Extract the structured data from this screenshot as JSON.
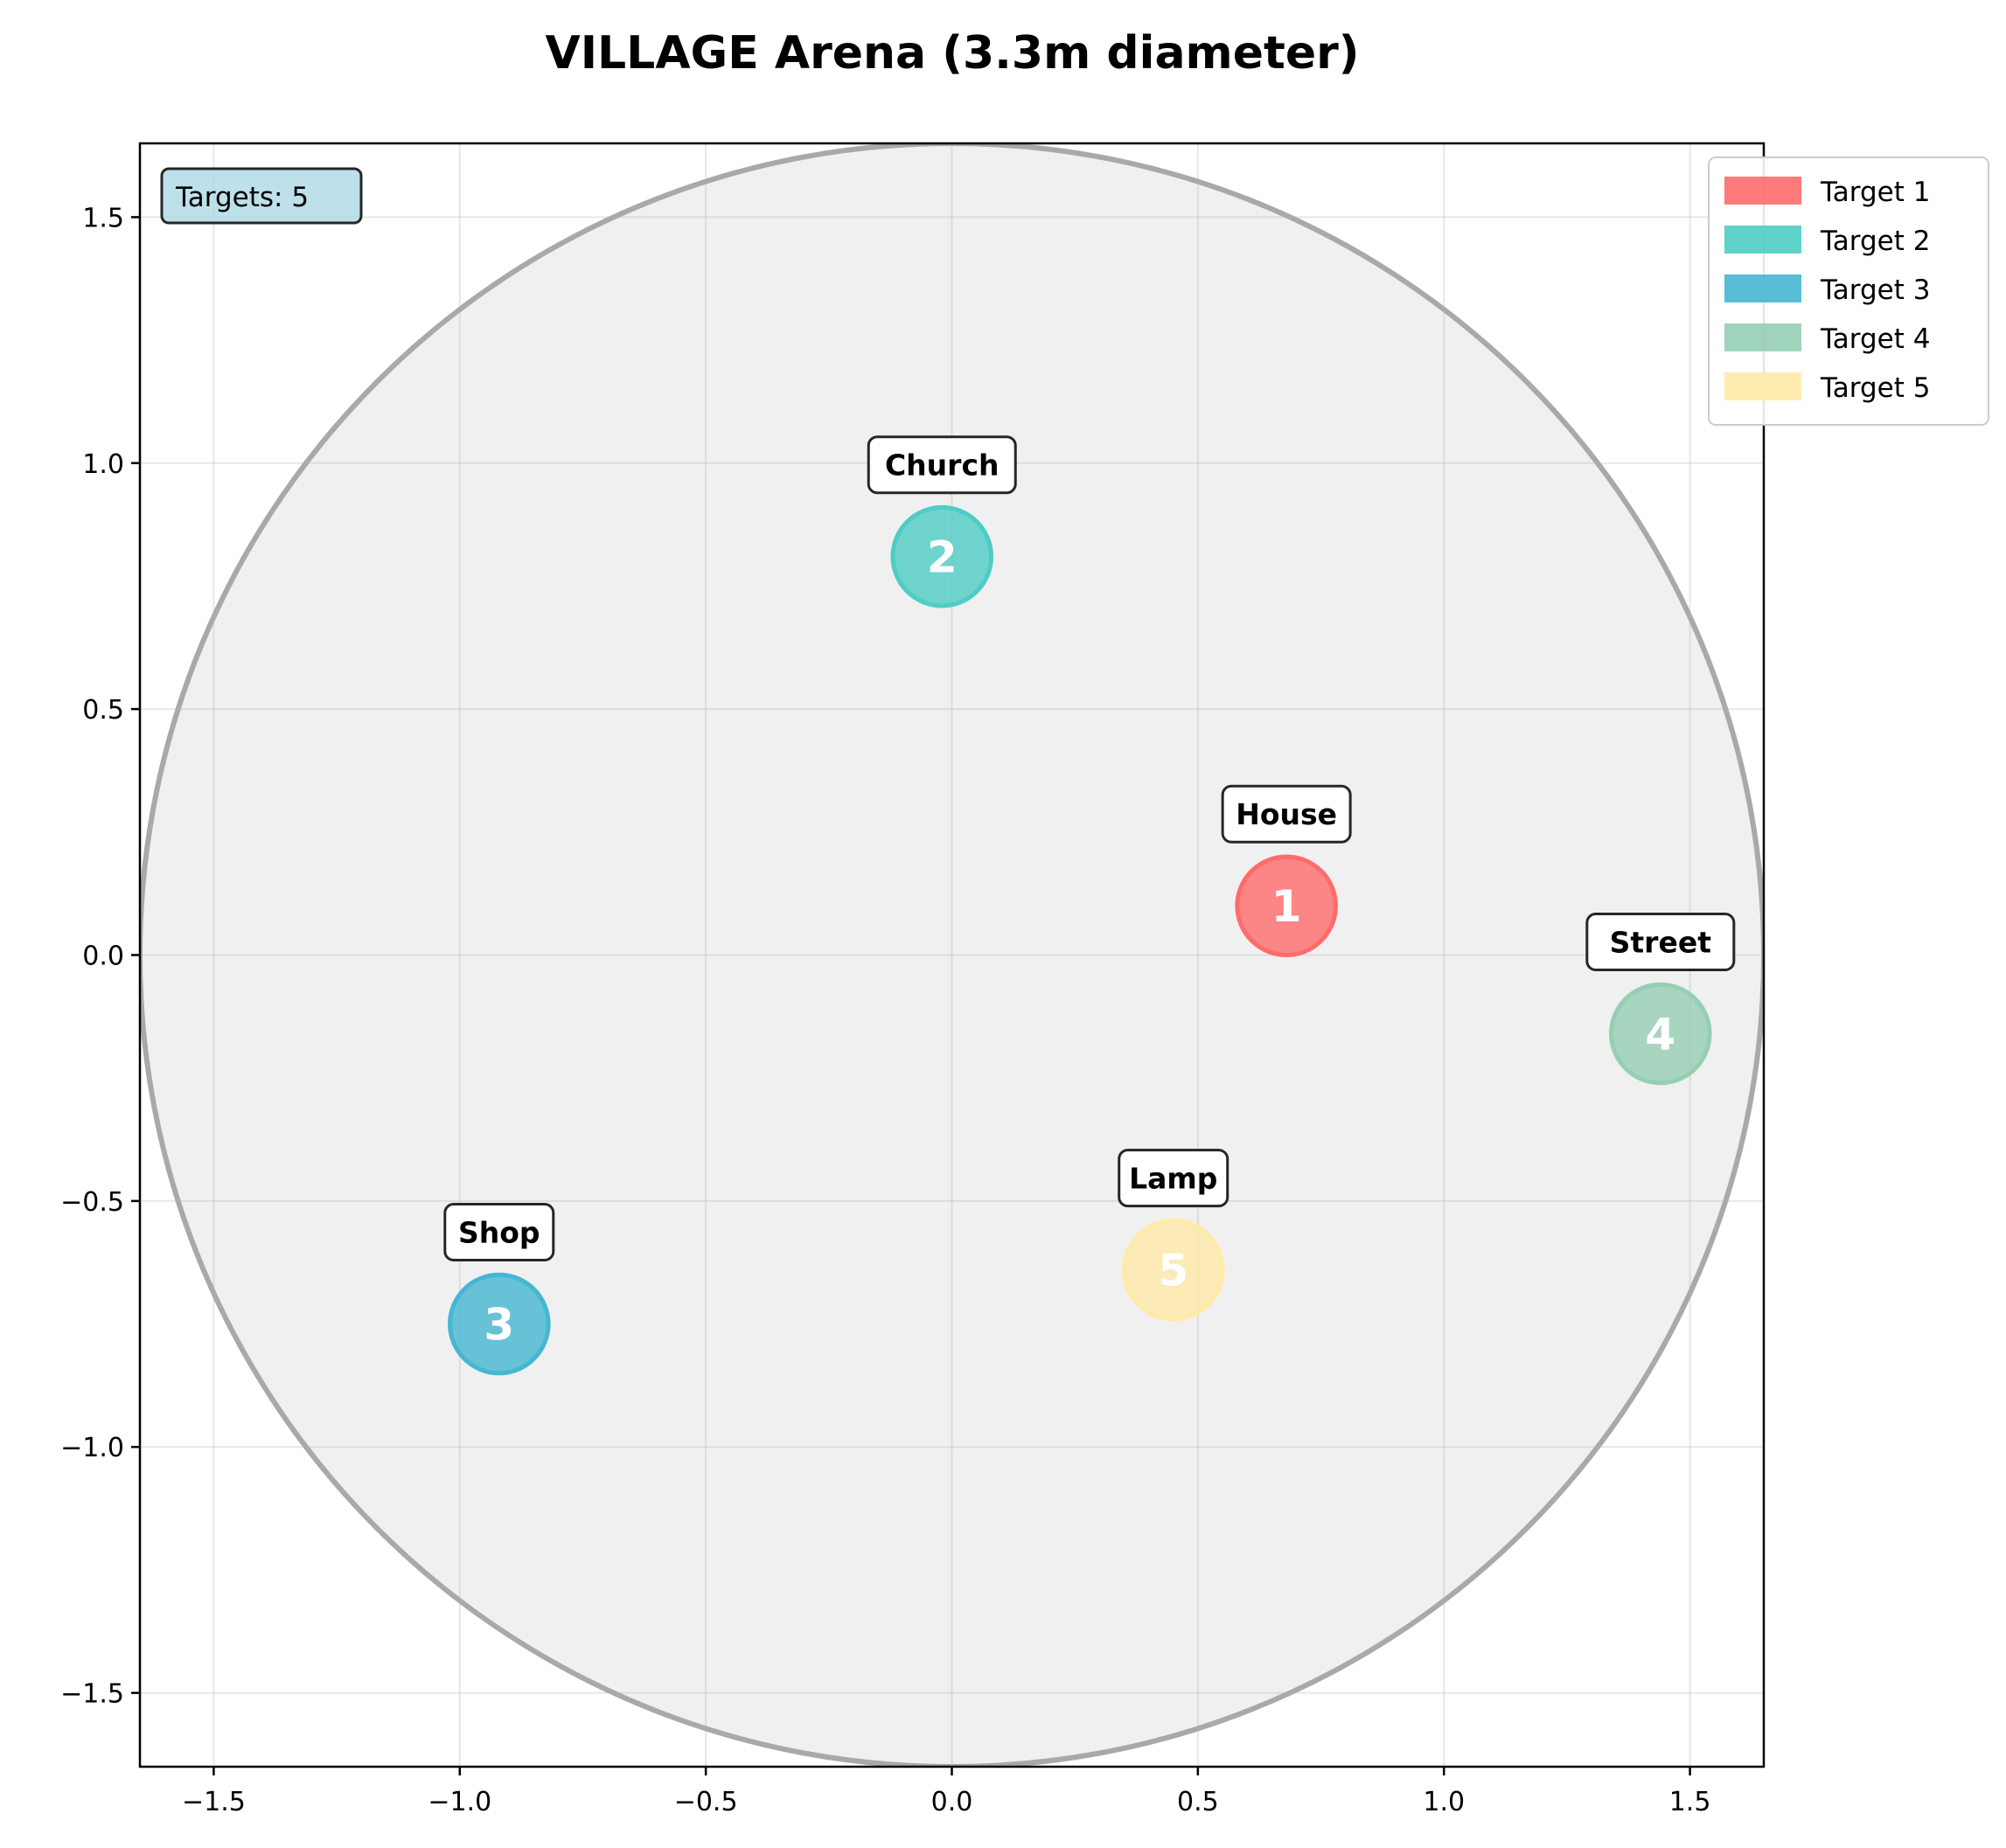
{
  "chart_data": {
    "type": "scatter",
    "title": "VILLAGE Arena (3.3m diameter)",
    "xlabel": "",
    "ylabel": "",
    "xlim": [
      -1.65,
      1.65
    ],
    "ylim": [
      -1.65,
      1.65
    ],
    "x_ticks": [
      -1.5,
      -1.0,
      -0.5,
      0.0,
      0.5,
      1.0,
      1.5
    ],
    "y_ticks": [
      -1.5,
      -1.0,
      -0.5,
      0.0,
      0.5,
      1.0,
      1.5
    ],
    "x_tick_labels": [
      "−1.5",
      "−1.0",
      "−0.5",
      "0.0",
      "0.5",
      "1.0",
      "1.5"
    ],
    "y_tick_labels": [
      "−1.5",
      "−1.0",
      "−0.5",
      "0.0",
      "0.5",
      "1.0",
      "1.5"
    ],
    "grid": true,
    "arena": {
      "center": [
        0,
        0
      ],
      "radius": 1.65,
      "fill": "#f0f0f0",
      "edge": "#a9a9a9"
    },
    "target_radius": 0.1,
    "info_box": "Targets: 5",
    "legend_position": "upper-right-outside",
    "targets": [
      {
        "id": "1",
        "name": "Target 1",
        "label": "House",
        "x": 0.68,
        "y": 0.1,
        "color": "#ff6b6b"
      },
      {
        "id": "2",
        "name": "Target 2",
        "label": "Church",
        "x": -0.02,
        "y": 0.81,
        "color": "#4ecdc4"
      },
      {
        "id": "3",
        "name": "Target 3",
        "label": "Shop",
        "x": -0.92,
        "y": -0.75,
        "color": "#45b7d1"
      },
      {
        "id": "4",
        "name": "Target 4",
        "label": "Street",
        "x": 1.44,
        "y": -0.16,
        "color": "#96ceb4"
      },
      {
        "id": "5",
        "name": "Target 5",
        "label": "Lamp",
        "x": 0.45,
        "y": -0.64,
        "color": "#ffeaa7"
      }
    ]
  }
}
